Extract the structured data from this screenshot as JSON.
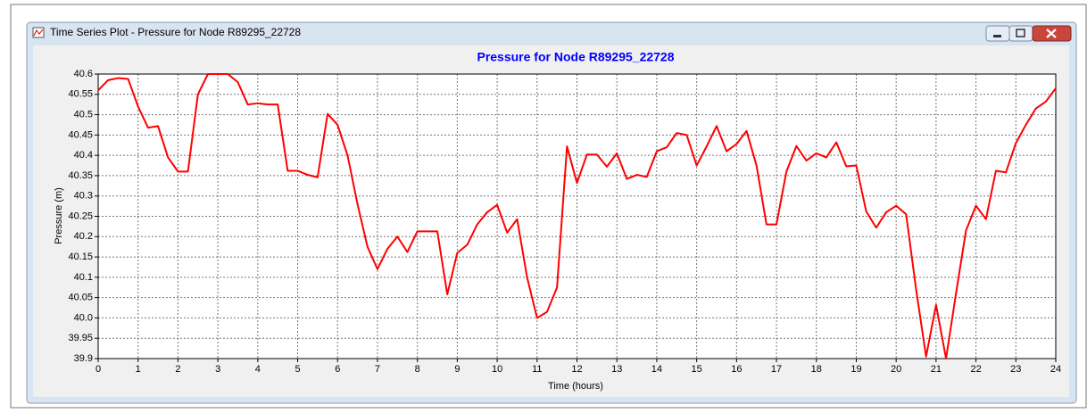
{
  "window": {
    "title": "Time Series Plot - Pressure for Node R89295_22728"
  },
  "chart_data": {
    "type": "line",
    "title": "Pressure for Node R89295_22728",
    "x_label": "Time (hours)",
    "y_label": "Pressure (m)",
    "x": [
      0,
      0.25,
      0.5,
      0.75,
      1,
      1.25,
      1.5,
      1.75,
      2,
      2.25,
      2.5,
      2.75,
      3,
      3.25,
      3.5,
      3.75,
      4,
      4.25,
      4.5,
      4.75,
      5,
      5.25,
      5.5,
      5.75,
      6,
      6.25,
      6.5,
      6.75,
      7,
      7.25,
      7.5,
      7.75,
      8,
      8.25,
      8.5,
      8.75,
      9,
      9.25,
      9.5,
      9.75,
      10,
      10.25,
      10.5,
      10.75,
      11,
      11.25,
      11.5,
      11.75,
      12,
      12.25,
      12.5,
      12.75,
      13,
      13.25,
      13.5,
      13.75,
      14,
      14.25,
      14.5,
      14.75,
      15,
      15.25,
      15.5,
      15.75,
      16,
      16.25,
      16.5,
      16.75,
      17,
      17.25,
      17.5,
      17.75,
      18,
      18.25,
      18.5,
      18.75,
      19,
      19.25,
      19.5,
      19.75,
      20,
      20.25,
      20.5,
      20.75,
      21,
      21.25,
      21.5,
      21.75,
      22,
      22.25,
      22.5,
      22.75,
      23,
      23.25,
      23.5,
      23.75,
      24
    ],
    "series": [
      {
        "name": "Pressure",
        "color": "#ff0000",
        "values": [
          40.56,
          40.585,
          40.59,
          40.588,
          40.52,
          40.468,
          40.472,
          40.395,
          40.36,
          40.36,
          40.55,
          40.6,
          40.6,
          40.6,
          40.58,
          40.525,
          40.528,
          40.525,
          40.525,
          40.362,
          40.362,
          40.352,
          40.346,
          40.502,
          40.475,
          40.4,
          40.28,
          40.175,
          40.12,
          40.17,
          40.2,
          40.162,
          40.213,
          40.213,
          40.213,
          40.058,
          40.16,
          40.18,
          40.23,
          40.26,
          40.278,
          40.21,
          40.243,
          40.1,
          40.0,
          40.015,
          40.075,
          40.422,
          40.332,
          40.402,
          40.402,
          40.372,
          40.405,
          40.342,
          40.352,
          40.347,
          40.41,
          40.42,
          40.455,
          40.45,
          40.375,
          40.422,
          40.472,
          40.41,
          40.428,
          40.46,
          40.375,
          40.23,
          40.23,
          40.36,
          40.423,
          40.387,
          40.405,
          40.395,
          40.432,
          40.373,
          40.375,
          40.262,
          40.222,
          40.26,
          40.276,
          40.255,
          40.07,
          39.905,
          40.032,
          39.9,
          40.06,
          40.215,
          40.276,
          40.243,
          40.362,
          40.358,
          40.43,
          40.475,
          40.515,
          40.532,
          40.565
        ]
      }
    ],
    "xlim": [
      0,
      24
    ],
    "xticks": [
      0,
      1,
      2,
      3,
      4,
      5,
      6,
      7,
      8,
      9,
      10,
      11,
      12,
      13,
      14,
      15,
      16,
      17,
      18,
      19,
      20,
      21,
      22,
      23,
      24
    ],
    "ylim": [
      39.9,
      40.6
    ],
    "yticks": [
      39.9,
      39.95,
      {
        "value": 40,
        "label": "40.0"
      },
      40.05,
      40.1,
      40.15,
      40.2,
      40.25,
      40.3,
      40.35,
      40.4,
      40.45,
      40.5,
      40.55,
      40.6
    ],
    "grid": true,
    "title_color": "#0000ff"
  }
}
